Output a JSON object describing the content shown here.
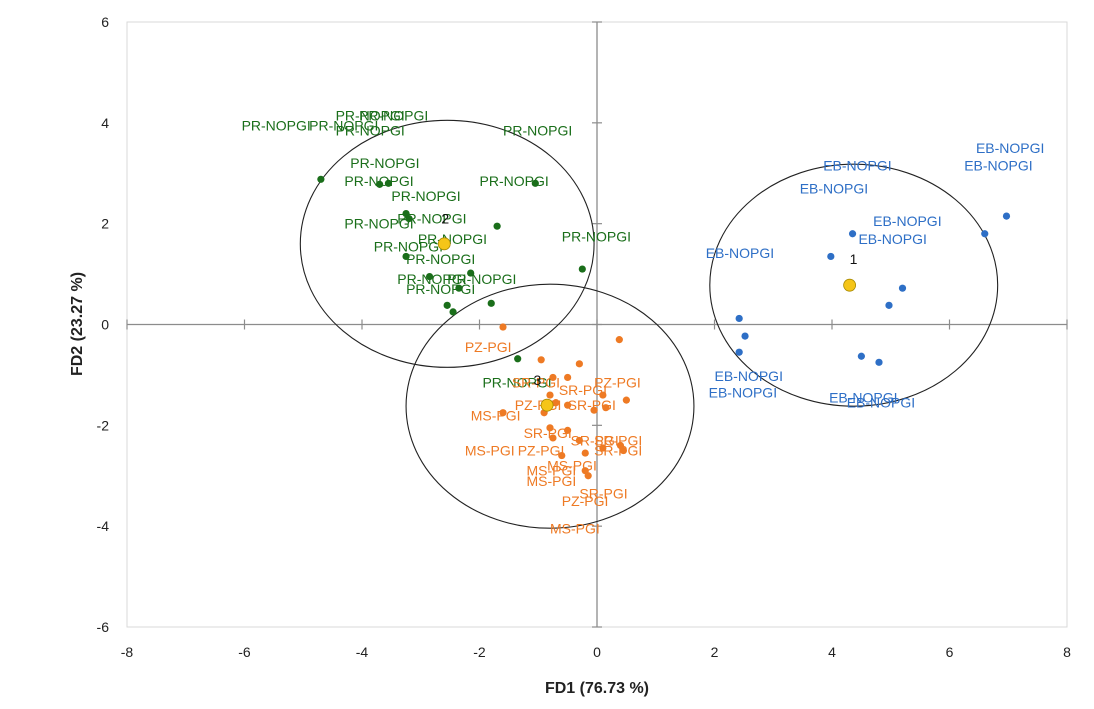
{
  "chart_data": {
    "type": "scatter",
    "title": "",
    "xlabel": "FD1 (76.73 %)",
    "ylabel": "FD2 (23.27 %)",
    "xlim": [
      -8,
      8
    ],
    "ylim": [
      -6,
      6
    ],
    "xticks": [
      -8,
      -6,
      -4,
      -2,
      0,
      2,
      4,
      6,
      8
    ],
    "yticks": [
      -6,
      -4,
      -2,
      0,
      2,
      4,
      6
    ],
    "grid": false,
    "colors": {
      "EB-NOPGI": "#2e6fc6",
      "PR-NOPGI": "#1a6e1a",
      "PGI": "#ee7a24",
      "centroid": "#f5c518",
      "axis": "#8c8c8c",
      "circle": "#222222"
    },
    "series": [
      {
        "name": "EB-NOPGI",
        "color": "#2e6fc6",
        "points": [
          {
            "x": 4.35,
            "y": 1.8
          },
          {
            "x": 3.98,
            "y": 1.35
          },
          {
            "x": 6.6,
            "y": 1.8
          },
          {
            "x": 6.97,
            "y": 2.15
          },
          {
            "x": 5.2,
            "y": 0.72
          },
          {
            "x": 4.97,
            "y": 0.38
          },
          {
            "x": 2.42,
            "y": 0.12
          },
          {
            "x": 2.52,
            "y": -0.23
          },
          {
            "x": 2.42,
            "y": -0.55
          },
          {
            "x": 4.5,
            "y": -0.63
          },
          {
            "x": 4.8,
            "y": -0.75
          }
        ],
        "labels": [
          {
            "text": "EB-NOPGI",
            "x": 3.85,
            "y": 3.15
          },
          {
            "text": "EB-NOPGI",
            "x": 6.45,
            "y": 3.5
          },
          {
            "text": "EB-NOPGI",
            "x": 6.25,
            "y": 3.15
          },
          {
            "text": "EB-NOPGI",
            "x": 3.45,
            "y": 2.7
          },
          {
            "text": "EB-NOPGI",
            "x": 4.7,
            "y": 2.05
          },
          {
            "text": "EB-NOPGI",
            "x": 4.45,
            "y": 1.7
          },
          {
            "text": "EB-NOPGI",
            "x": 1.85,
            "y": 1.42
          },
          {
            "text": "EB-NOPGI",
            "x": 2.0,
            "y": -1.02
          },
          {
            "text": "EB-NOPGI",
            "x": 1.9,
            "y": -1.35
          },
          {
            "text": "EB-NOPGI",
            "x": 3.95,
            "y": -1.45
          },
          {
            "text": "EB-NOPGI",
            "x": 4.25,
            "y": -1.55
          }
        ]
      },
      {
        "name": "PR-NOPGI",
        "color": "#1a6e1a",
        "points": [
          {
            "x": -4.7,
            "y": 2.88
          },
          {
            "x": -3.55,
            "y": 2.8
          },
          {
            "x": -3.7,
            "y": 2.78
          },
          {
            "x": -1.05,
            "y": 2.8
          },
          {
            "x": -3.25,
            "y": 2.2
          },
          {
            "x": -3.2,
            "y": 2.1
          },
          {
            "x": -1.7,
            "y": 1.95
          },
          {
            "x": -3.25,
            "y": 1.35
          },
          {
            "x": -2.15,
            "y": 1.02
          },
          {
            "x": -2.85,
            "y": 0.95
          },
          {
            "x": -2.35,
            "y": 0.72
          },
          {
            "x": -0.25,
            "y": 1.1
          },
          {
            "x": -2.55,
            "y": 0.38
          },
          {
            "x": -2.45,
            "y": 0.25
          },
          {
            "x": -1.8,
            "y": 0.42
          },
          {
            "x": -1.35,
            "y": -0.68
          }
        ],
        "labels": [
          {
            "text": "PR-NOPGI",
            "x": -4.45,
            "y": 4.15
          },
          {
            "text": "PR-NOPGI",
            "x": -4.05,
            "y": 4.15
          },
          {
            "text": "PR-NOPGI",
            "x": -6.05,
            "y": 3.95
          },
          {
            "text": "PR-NOPGI",
            "x": -4.45,
            "y": 3.85
          },
          {
            "text": "PR-NOPGI",
            "x": -4.9,
            "y": 3.95
          },
          {
            "text": "PR-NOPGI",
            "x": -1.6,
            "y": 3.85
          },
          {
            "text": "PR-NOPGI",
            "x": -4.2,
            "y": 3.2
          },
          {
            "text": "PR-NOPGI",
            "x": -4.3,
            "y": 2.85
          },
          {
            "text": "PR-NOPGI",
            "x": -3.5,
            "y": 2.55
          },
          {
            "text": "PR-NOPGI",
            "x": -2.0,
            "y": 2.85
          },
          {
            "text": "PR-NOPGI",
            "x": -3.4,
            "y": 2.1
          },
          {
            "text": "PR-NOPGI",
            "x": -4.3,
            "y": 2.0
          },
          {
            "text": "PR-NOPGI",
            "x": -3.05,
            "y": 1.7
          },
          {
            "text": "PR-NOPGI",
            "x": -3.8,
            "y": 1.55
          },
          {
            "text": "PR-NOPGI",
            "x": -3.25,
            "y": 1.3
          },
          {
            "text": "PR-NOPGI",
            "x": -0.6,
            "y": 1.75
          },
          {
            "text": "PR-NOPGI",
            "x": -2.55,
            "y": 0.9
          },
          {
            "text": "PR-NOPGI",
            "x": -3.4,
            "y": 0.9
          },
          {
            "text": "PR-NOPGI",
            "x": -3.25,
            "y": 0.7
          },
          {
            "text": "PR-NOPGI",
            "x": -1.95,
            "y": -1.15
          }
        ]
      },
      {
        "name": "PGI",
        "color": "#ee7a24",
        "points": [
          {
            "x": -1.6,
            "y": -0.05
          },
          {
            "x": -0.95,
            "y": -0.7
          },
          {
            "x": -0.3,
            "y": -0.78
          },
          {
            "x": 0.38,
            "y": -0.3
          },
          {
            "x": -0.5,
            "y": -1.05
          },
          {
            "x": -0.75,
            "y": -1.05
          },
          {
            "x": -0.8,
            "y": -1.4
          },
          {
            "x": -0.7,
            "y": -1.55
          },
          {
            "x": -0.9,
            "y": -1.75
          },
          {
            "x": -1.6,
            "y": -1.75
          },
          {
            "x": -0.5,
            "y": -1.6
          },
          {
            "x": -0.05,
            "y": -1.7
          },
          {
            "x": 0.1,
            "y": -1.4
          },
          {
            "x": 0.15,
            "y": -1.65
          },
          {
            "x": 0.5,
            "y": -1.5
          },
          {
            "x": -0.8,
            "y": -2.05
          },
          {
            "x": -0.75,
            "y": -2.25
          },
          {
            "x": -0.5,
            "y": -2.1
          },
          {
            "x": -0.3,
            "y": -2.3
          },
          {
            "x": 0.1,
            "y": -2.45
          },
          {
            "x": -0.2,
            "y": -2.55
          },
          {
            "x": 0.4,
            "y": -2.4
          },
          {
            "x": 0.45,
            "y": -2.5
          },
          {
            "x": -0.6,
            "y": -2.6
          },
          {
            "x": -0.2,
            "y": -2.9
          },
          {
            "x": -0.15,
            "y": -3.0
          }
        ],
        "labels": [
          {
            "text": "PZ-PGI",
            "x": -2.25,
            "y": -0.45
          },
          {
            "text": "SR-PGI",
            "x": -1.45,
            "y": -1.15
          },
          {
            "text": "SR-PGI",
            "x": -0.65,
            "y": -1.3
          },
          {
            "text": "PZ-PGI",
            "x": -0.05,
            "y": -1.15
          },
          {
            "text": "PZ-PGI",
            "x": -1.4,
            "y": -1.6
          },
          {
            "text": "SR-PGI",
            "x": -0.5,
            "y": -1.6
          },
          {
            "text": "MS-PGI",
            "x": -2.15,
            "y": -1.8
          },
          {
            "text": "SR-PGI",
            "x": -1.25,
            "y": -2.15
          },
          {
            "text": "SR-PGI",
            "x": -0.45,
            "y": -2.3
          },
          {
            "text": "SR-PGI",
            "x": -0.05,
            "y": -2.3
          },
          {
            "text": "SR-PGI",
            "x": -0.05,
            "y": -2.5
          },
          {
            "text": "MS-PGI",
            "x": -2.25,
            "y": -2.5
          },
          {
            "text": "PZ-PGI",
            "x": -1.35,
            "y": -2.5
          },
          {
            "text": "MS-PGI",
            "x": -1.2,
            "y": -2.9
          },
          {
            "text": "MS-PGI",
            "x": -0.85,
            "y": -2.8
          },
          {
            "text": "MS-PGI",
            "x": -1.2,
            "y": -3.1
          },
          {
            "text": "SR-PGI",
            "x": -0.3,
            "y": -3.35
          },
          {
            "text": "PZ-PGI",
            "x": -0.6,
            "y": -3.5
          },
          {
            "text": "MS-PGI",
            "x": -0.8,
            "y": -4.05
          }
        ]
      }
    ],
    "centroids": [
      {
        "cluster": "1",
        "x": 4.3,
        "y": 0.78,
        "label_x": 4.3,
        "label_y": 1.3
      },
      {
        "cluster": "2",
        "x": -2.6,
        "y": 1.6,
        "label_x": -2.65,
        "label_y": 2.1
      },
      {
        "cluster": "3",
        "x": -0.85,
        "y": -1.6,
        "label_x": -1.08,
        "label_y": -1.1
      }
    ],
    "ellipses": [
      {
        "cluster": "1",
        "cx": 4.37,
        "cy": 0.78,
        "rx": 2.45,
        "ry": 2.4
      },
      {
        "cluster": "2",
        "cx": -2.55,
        "cy": 1.6,
        "rx": 2.5,
        "ry": 2.45
      },
      {
        "cluster": "3",
        "cx": -0.8,
        "cy": -1.62,
        "rx": 2.45,
        "ry": 2.42
      }
    ]
  }
}
